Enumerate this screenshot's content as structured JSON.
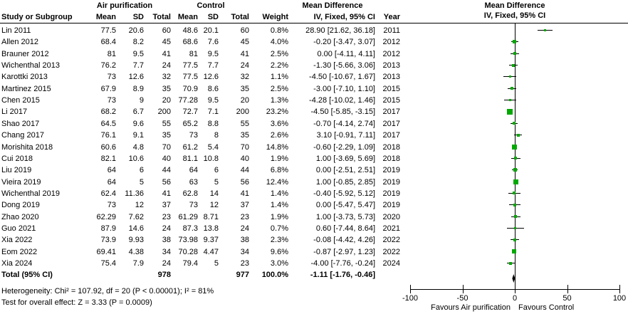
{
  "table": {
    "study_col": "Study or Subgroup",
    "group1": "Air purification",
    "group2": "Control",
    "mean": "Mean",
    "sd": "SD",
    "total": "Total",
    "weight": "Weight",
    "md_header": "Mean Difference",
    "md_sub": "IV, Fixed, 95% CI",
    "year": "Year"
  },
  "plot": {
    "header1": "Mean Difference",
    "header2": "IV, Fixed, 95% CI",
    "favours_left": "Favours Air purification",
    "favours_right": "Favours Control",
    "marker_color": "#00A800",
    "diamond_color": "#000000",
    "axis_color": "#000000"
  },
  "chart_data": {
    "type": "scatter",
    "subtype": "forest-plot",
    "title": "Mean Difference IV, Fixed, 95% CI",
    "xlim": [
      -100,
      100
    ],
    "ticks": [
      -100,
      -50,
      0,
      50,
      100
    ],
    "studies": [
      {
        "name": "Lin 2011",
        "air_mean": "77.5",
        "air_sd": "20.6",
        "air_n": "60",
        "ctl_mean": "48.6",
        "ctl_sd": "20.1",
        "ctl_n": "60",
        "weight": "0.8%",
        "weight_pct": 0.8,
        "md": "28.90 [21.62, 36.18]",
        "year": "2011",
        "est": 28.9,
        "lo": 21.62,
        "hi": 36.18
      },
      {
        "name": "Allen 2012",
        "air_mean": "68.4",
        "air_sd": "8.2",
        "air_n": "45",
        "ctl_mean": "68.6",
        "ctl_sd": "7.6",
        "ctl_n": "45",
        "weight": "4.0%",
        "weight_pct": 4.0,
        "md": "-0.20 [-3.47, 3.07]",
        "year": "2012",
        "est": -0.2,
        "lo": -3.47,
        "hi": 3.07
      },
      {
        "name": "Brauner 2012",
        "air_mean": "81",
        "air_sd": "9.5",
        "air_n": "41",
        "ctl_mean": "81",
        "ctl_sd": "9.5",
        "ctl_n": "41",
        "weight": "2.5%",
        "weight_pct": 2.5,
        "md": "0.00 [-4.11, 4.11]",
        "year": "2012",
        "est": 0.0,
        "lo": -4.11,
        "hi": 4.11
      },
      {
        "name": "Wichenthal 2013",
        "air_mean": "76.2",
        "air_sd": "7.7",
        "air_n": "24",
        "ctl_mean": "77.5",
        "ctl_sd": "7.7",
        "ctl_n": "24",
        "weight": "2.2%",
        "weight_pct": 2.2,
        "md": "-1.30 [-5.66, 3.06]",
        "year": "2013",
        "est": -1.3,
        "lo": -5.66,
        "hi": 3.06
      },
      {
        "name": "Karottki 2013",
        "air_mean": "73",
        "air_sd": "12.6",
        "air_n": "32",
        "ctl_mean": "77.5",
        "ctl_sd": "12.6",
        "ctl_n": "32",
        "weight": "1.1%",
        "weight_pct": 1.1,
        "md": "-4.50 [-10.67, 1.67]",
        "year": "2013",
        "est": -4.5,
        "lo": -10.67,
        "hi": 1.67
      },
      {
        "name": "Martinez 2015",
        "air_mean": "67.9",
        "air_sd": "8.9",
        "air_n": "35",
        "ctl_mean": "70.9",
        "ctl_sd": "8.6",
        "ctl_n": "35",
        "weight": "2.5%",
        "weight_pct": 2.5,
        "md": "-3.00 [-7.10, 1.10]",
        "year": "2015",
        "est": -3.0,
        "lo": -7.1,
        "hi": 1.1
      },
      {
        "name": "Chen 2015",
        "air_mean": "73",
        "air_sd": "9",
        "air_n": "20",
        "ctl_mean": "77.28",
        "ctl_sd": "9.5",
        "ctl_n": "20",
        "weight": "1.3%",
        "weight_pct": 1.3,
        "md": "-4.28 [-10.02, 1.46]",
        "year": "2015",
        "est": -4.28,
        "lo": -10.02,
        "hi": 1.46
      },
      {
        "name": "Li 2017",
        "air_mean": "68.2",
        "air_sd": "6.7",
        "air_n": "200",
        "ctl_mean": "72.7",
        "ctl_sd": "7.1",
        "ctl_n": "200",
        "weight": "23.2%",
        "weight_pct": 23.2,
        "md": "-4.50 [-5.85, -3.15]",
        "year": "2017",
        "est": -4.5,
        "lo": -5.85,
        "hi": -3.15
      },
      {
        "name": "Shao 2017",
        "air_mean": "64.5",
        "air_sd": "9.6",
        "air_n": "55",
        "ctl_mean": "65.2",
        "ctl_sd": "8.8",
        "ctl_n": "55",
        "weight": "3.6%",
        "weight_pct": 3.6,
        "md": "-0.70 [-4.14, 2.74]",
        "year": "2017",
        "est": -0.7,
        "lo": -4.14,
        "hi": 2.74
      },
      {
        "name": "Chang 2017",
        "air_mean": "76.1",
        "air_sd": "9.1",
        "air_n": "35",
        "ctl_mean": "73",
        "ctl_sd": "8",
        "ctl_n": "35",
        "weight": "2.6%",
        "weight_pct": 2.6,
        "md": "3.10 [-0.91, 7.11]",
        "year": "2017",
        "est": 3.1,
        "lo": -0.91,
        "hi": 7.11
      },
      {
        "name": "Morishita 2018",
        "air_mean": "60.6",
        "air_sd": "4.8",
        "air_n": "70",
        "ctl_mean": "61.2",
        "ctl_sd": "5.4",
        "ctl_n": "70",
        "weight": "14.8%",
        "weight_pct": 14.8,
        "md": "-0.60 [-2.29, 1.09]",
        "year": "2018",
        "est": -0.6,
        "lo": -2.29,
        "hi": 1.09
      },
      {
        "name": "Cui 2018",
        "air_mean": "82.1",
        "air_sd": "10.6",
        "air_n": "40",
        "ctl_mean": "81.1",
        "ctl_sd": "10.8",
        "ctl_n": "40",
        "weight": "1.9%",
        "weight_pct": 1.9,
        "md": "1.00 [-3.69, 5.69]",
        "year": "2018",
        "est": 1.0,
        "lo": -3.69,
        "hi": 5.69
      },
      {
        "name": "Liu 2019",
        "air_mean": "64",
        "air_sd": "6",
        "air_n": "44",
        "ctl_mean": "64",
        "ctl_sd": "6",
        "ctl_n": "44",
        "weight": "6.8%",
        "weight_pct": 6.8,
        "md": "0.00 [-2.51, 2.51]",
        "year": "2019",
        "est": 0.0,
        "lo": -2.51,
        "hi": 2.51
      },
      {
        "name": "Vieira 2019",
        "air_mean": "64",
        "air_sd": "5",
        "air_n": "56",
        "ctl_mean": "63",
        "ctl_sd": "5",
        "ctl_n": "56",
        "weight": "12.4%",
        "weight_pct": 12.4,
        "md": "1.00 [-0.85, 2.85]",
        "year": "2019",
        "est": 1.0,
        "lo": -0.85,
        "hi": 2.85
      },
      {
        "name": "Wichenthal 2019",
        "air_mean": "62.4",
        "air_sd": "11.36",
        "air_n": "41",
        "ctl_mean": "62.8",
        "ctl_sd": "14",
        "ctl_n": "41",
        "weight": "1.4%",
        "weight_pct": 1.4,
        "md": "-0.40 [-5.92, 5.12]",
        "year": "2019",
        "est": -0.4,
        "lo": -5.92,
        "hi": 5.12
      },
      {
        "name": "Dong 2019",
        "air_mean": "73",
        "air_sd": "12",
        "air_n": "37",
        "ctl_mean": "73",
        "ctl_sd": "12",
        "ctl_n": "37",
        "weight": "1.4%",
        "weight_pct": 1.4,
        "md": "0.00 [-5.47, 5.47]",
        "year": "2019",
        "est": 0.0,
        "lo": -5.47,
        "hi": 5.47
      },
      {
        "name": "Zhao 2020",
        "air_mean": "62.29",
        "air_sd": "7.62",
        "air_n": "23",
        "ctl_mean": "61.29",
        "ctl_sd": "8.71",
        "ctl_n": "23",
        "weight": "1.9%",
        "weight_pct": 1.9,
        "md": "1.00 [-3.73, 5.73]",
        "year": "2020",
        "est": 1.0,
        "lo": -3.73,
        "hi": 5.73
      },
      {
        "name": "Guo 2021",
        "air_mean": "87.9",
        "air_sd": "14.6",
        "air_n": "24",
        "ctl_mean": "87.3",
        "ctl_sd": "13.8",
        "ctl_n": "24",
        "weight": "0.7%",
        "weight_pct": 0.7,
        "md": "0.60 [-7.44, 8.64]",
        "year": "2021",
        "est": 0.6,
        "lo": -7.44,
        "hi": 8.64
      },
      {
        "name": "Xia 2022",
        "air_mean": "73.9",
        "air_sd": "9.93",
        "air_n": "38",
        "ctl_mean": "73.98",
        "ctl_sd": "9.37",
        "ctl_n": "38",
        "weight": "2.3%",
        "weight_pct": 2.3,
        "md": "-0.08 [-4.42, 4.26]",
        "year": "2022",
        "est": -0.08,
        "lo": -4.42,
        "hi": 4.26
      },
      {
        "name": "Eom 2022",
        "air_mean": "69.41",
        "air_sd": "4.38",
        "air_n": "34",
        "ctl_mean": "70.28",
        "ctl_sd": "4.47",
        "ctl_n": "34",
        "weight": "9.6%",
        "weight_pct": 9.6,
        "md": "-0.87 [-2.97, 1.23]",
        "year": "2022",
        "est": -0.87,
        "lo": -2.97,
        "hi": 1.23
      },
      {
        "name": "Xia 2024",
        "air_mean": "75.4",
        "air_sd": "7.9",
        "air_n": "24",
        "ctl_mean": "79.4",
        "ctl_sd": "5",
        "ctl_n": "23",
        "weight": "3.0%",
        "weight_pct": 3.0,
        "md": "-4.00 [-7.76, -0.24]",
        "year": "2024",
        "est": -4.0,
        "lo": -7.76,
        "hi": -0.24
      }
    ],
    "total": {
      "label": "Total (95% CI)",
      "air_n": "978",
      "ctl_n": "977",
      "weight": "100.0%",
      "md": "-1.11 [-1.76, -0.46]",
      "est": -1.11,
      "lo": -1.76,
      "hi": -0.46
    },
    "heterogeneity": "Heterogeneity: Chi² = 107.92, df = 20 (P < 0.00001); I² = 81%",
    "overall_effect": "Test for overall effect: Z = 3.33 (P = 0.0009)"
  }
}
